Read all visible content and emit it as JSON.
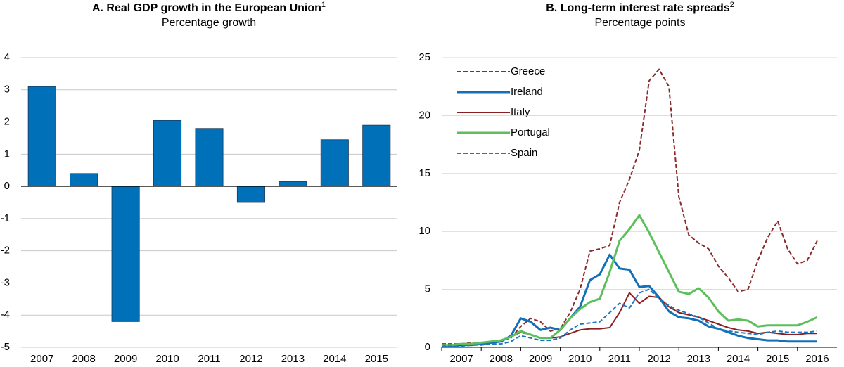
{
  "chart_data": [
    {
      "type": "bar",
      "title": "A. Real GDP growth in the European Union",
      "title_note": "1",
      "subtitle": "Percentage growth",
      "categories": [
        "2007",
        "2008",
        "2009",
        "2010",
        "2011",
        "2012",
        "2013",
        "2014",
        "2015"
      ],
      "values": [
        3.1,
        0.4,
        -4.2,
        2.05,
        1.8,
        -0.5,
        0.15,
        1.45,
        1.9
      ],
      "color": "#0070b8",
      "ylim": [
        -5,
        4
      ],
      "yticks": [
        -5,
        -4,
        -3,
        -2,
        -1,
        0,
        1,
        2,
        3,
        4
      ],
      "grid": true
    },
    {
      "type": "line",
      "title": "B. Long-term interest rate spreads",
      "title_note": "2",
      "subtitle": "Percentage points",
      "categories": [
        "2007",
        "2008",
        "2009",
        "2010",
        "2011",
        "2012",
        "2013",
        "2014",
        "2015",
        "2016"
      ],
      "x": [
        2007,
        2007.25,
        2007.5,
        2007.75,
        2008,
        2008.25,
        2008.5,
        2008.75,
        2009,
        2009.25,
        2009.5,
        2009.75,
        2010,
        2010.25,
        2010.5,
        2010.75,
        2011,
        2011.25,
        2011.5,
        2011.75,
        2012,
        2012.25,
        2012.5,
        2012.75,
        2013,
        2013.25,
        2013.5,
        2013.75,
        2014,
        2014.25,
        2014.5,
        2014.75,
        2015,
        2015.25,
        2015.5,
        2015.75,
        2016,
        2016.25,
        2016.5
      ],
      "xlim": [
        2007,
        2017
      ],
      "ylim": [
        0,
        25
      ],
      "yticks": [
        0,
        5,
        10,
        15,
        20,
        25
      ],
      "grid": true,
      "legend": "top-left",
      "series": [
        {
          "name": "Greece",
          "color": "#8b2a2a",
          "dash": true,
          "values": [
            0.3,
            0.3,
            0.3,
            0.4,
            0.4,
            0.5,
            0.6,
            0.8,
            1.8,
            2.5,
            2.2,
            1.4,
            1.6,
            3.0,
            5.0,
            8.3,
            8.5,
            8.8,
            12.5,
            14.5,
            17.0,
            23.0,
            24.0,
            22.5,
            13.0,
            9.7,
            9.0,
            8.5,
            7.0,
            6.0,
            4.8,
            5.0,
            7.5,
            9.5,
            10.9,
            8.5,
            7.2,
            7.5,
            9.2
          ]
        },
        {
          "name": "Ireland",
          "color": "#1170b8",
          "dash": false,
          "values": [
            0.1,
            0.1,
            0.2,
            0.2,
            0.3,
            0.4,
            0.5,
            1.0,
            2.5,
            2.2,
            1.5,
            1.7,
            1.5,
            2.5,
            3.5,
            5.8,
            6.3,
            8.0,
            6.8,
            6.7,
            5.2,
            5.3,
            4.3,
            3.1,
            2.6,
            2.5,
            2.3,
            1.8,
            1.6,
            1.3,
            1.0,
            0.8,
            0.7,
            0.6,
            0.6,
            0.5,
            0.5,
            0.5,
            0.5
          ]
        },
        {
          "name": "Italy",
          "color": "#8b1f1f",
          "dash": false,
          "values": [
            0.2,
            0.2,
            0.2,
            0.3,
            0.4,
            0.5,
            0.6,
            0.9,
            1.3,
            1.1,
            0.8,
            0.8,
            0.9,
            1.2,
            1.5,
            1.6,
            1.6,
            1.7,
            3.0,
            4.7,
            3.8,
            4.4,
            4.3,
            3.5,
            3.0,
            2.8,
            2.6,
            2.3,
            2.0,
            1.7,
            1.5,
            1.4,
            1.2,
            1.3,
            1.2,
            1.1,
            1.1,
            1.2,
            1.2
          ]
        },
        {
          "name": "Portugal",
          "color": "#5cbf5c",
          "dash": false,
          "values": [
            0.2,
            0.2,
            0.3,
            0.3,
            0.4,
            0.5,
            0.6,
            0.9,
            1.4,
            1.1,
            0.8,
            0.8,
            1.5,
            2.5,
            3.3,
            3.9,
            4.2,
            6.5,
            9.2,
            10.2,
            11.4,
            9.9,
            8.2,
            6.5,
            4.8,
            4.6,
            5.1,
            4.3,
            3.1,
            2.3,
            2.4,
            2.3,
            1.8,
            1.9,
            1.9,
            1.9,
            1.9,
            2.2,
            2.6
          ]
        },
        {
          "name": "Spain",
          "color": "#1a78c2",
          "dash": true,
          "values": [
            0.1,
            0.1,
            0.1,
            0.2,
            0.2,
            0.3,
            0.3,
            0.5,
            1.0,
            0.8,
            0.6,
            0.6,
            0.8,
            1.5,
            2.0,
            2.1,
            2.2,
            3.0,
            3.8,
            3.4,
            4.7,
            5.0,
            4.2,
            3.6,
            3.2,
            2.9,
            2.6,
            2.1,
            1.6,
            1.4,
            1.3,
            1.2,
            1.1,
            1.3,
            1.4,
            1.3,
            1.3,
            1.3,
            1.4
          ]
        }
      ]
    }
  ]
}
